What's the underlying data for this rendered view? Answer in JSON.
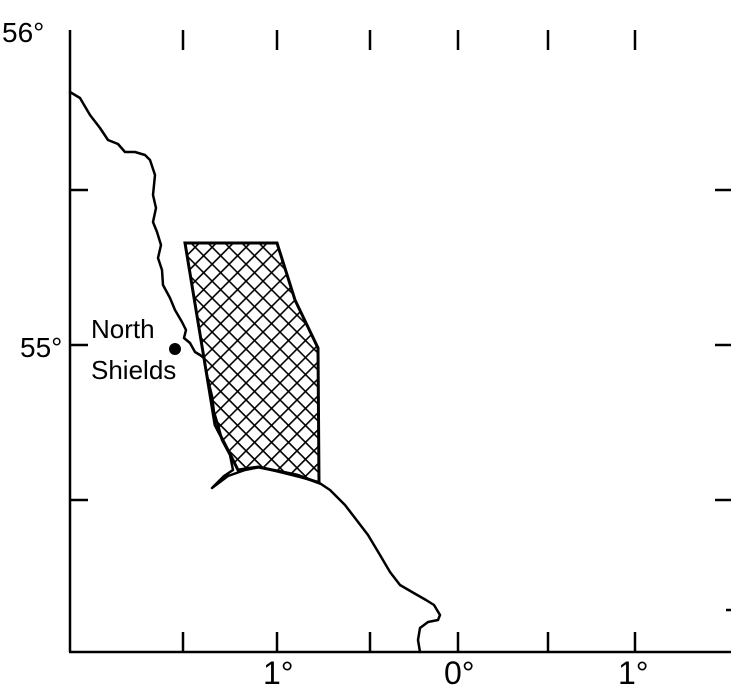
{
  "map": {
    "latitude_labels": [
      "56°",
      "55°"
    ],
    "longitude_labels": [
      "1°",
      "0°",
      "1°"
    ],
    "place": {
      "name_line1": "North",
      "name_line2": "Shields"
    }
  },
  "colors": {
    "ink": "#000000",
    "background": "#ffffff"
  }
}
